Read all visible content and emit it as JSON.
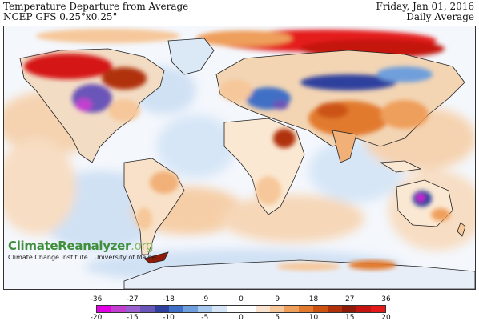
{
  "header": {
    "title": "Temperature Departure from Average",
    "model": "NCEP GFS 0.25°x0.25°",
    "date": "Friday, Jan 01, 2016",
    "product": "Daily Average"
  },
  "logo": {
    "brand_main": "ClimateReanalyzer",
    "brand_suffix": ".org",
    "subtitle": "Climate Change Institute | University of Maine"
  },
  "legend": {
    "fahrenheit_ticks": [
      "-36",
      "-27",
      "-18",
      "-9",
      "0",
      "9",
      "18",
      "27",
      "36"
    ],
    "celsius_ticks": [
      "-20",
      "-15",
      "-10",
      "-5",
      "0",
      "5",
      "10",
      "15",
      "20"
    ],
    "colors": [
      "#e400e4",
      "#c23fcf",
      "#9b5fd0",
      "#6a55b8",
      "#2f3f9e",
      "#3f6fc6",
      "#6f9fdc",
      "#a8c8ee",
      "#d6e6f7",
      "#ffffff",
      "#ffffff",
      "#fbe4cf",
      "#f6c79a",
      "#ef9f5c",
      "#e27a2e",
      "#cc5212",
      "#b0300c",
      "#8e1a0a",
      "#c41410",
      "#e41a1a"
    ]
  }
}
